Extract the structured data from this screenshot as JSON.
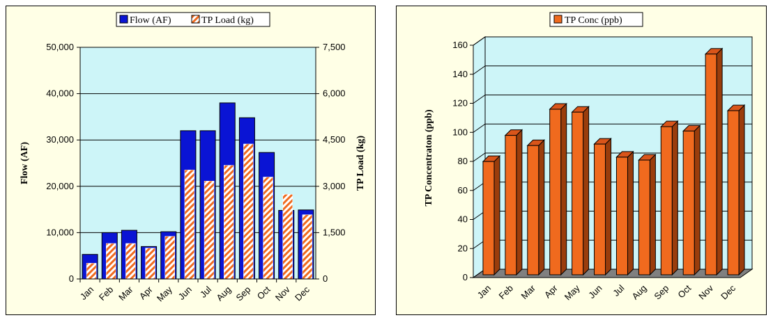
{
  "chart_data": [
    {
      "type": "bar",
      "categories": [
        "Jan",
        "Feb",
        "Mar",
        "Apr",
        "May",
        "Jun",
        "Jul",
        "Aug",
        "Sep",
        "Oct",
        "Nov",
        "Dec"
      ],
      "series": [
        {
          "name": "Flow (AF)",
          "axis": "left",
          "color": "#0a14d4",
          "values": [
            5300,
            10000,
            10500,
            7000,
            10200,
            32000,
            32000,
            38000,
            34800,
            27300,
            14800,
            14900
          ]
        },
        {
          "name": "TP Load (kg)",
          "axis": "right",
          "color": "#f06a1e",
          "values": [
            510,
            1150,
            1150,
            1000,
            1380,
            3530,
            3170,
            3680,
            4370,
            3300,
            2740,
            2080
          ]
        }
      ],
      "ylabel": "Flow (AF)",
      "y2label": "TP Load (kg)",
      "ylim": [
        0,
        50000
      ],
      "y2lim": [
        0,
        7500
      ],
      "yticks": [
        "0",
        "10,000",
        "20,000",
        "30,000",
        "40,000",
        "50,000"
      ],
      "y2ticks": [
        "0",
        "1,500",
        "3,000",
        "4,500",
        "6,000",
        "7,500"
      ],
      "legend": "top-center",
      "plot_bg": "#cdf5f8",
      "grid": true
    },
    {
      "type": "bar",
      "style": "3d",
      "categories": [
        "Jan",
        "Feb",
        "Mar",
        "Apr",
        "May",
        "Jun",
        "Jul",
        "Aug",
        "Sep",
        "Oct",
        "Nov",
        "Dec"
      ],
      "series": [
        {
          "name": "TP Conc (ppb)",
          "color": "#f06a1e",
          "values": [
            78,
            96,
            89,
            114,
            112,
            90,
            81,
            79,
            102,
            99,
            152,
            113
          ]
        }
      ],
      "ylabel": "TP Concentraton (ppb)",
      "ylim": [
        0,
        160
      ],
      "yticks": [
        "0",
        "20",
        "40",
        "60",
        "80",
        "100",
        "120",
        "140",
        "160"
      ],
      "legend": "top-center",
      "plot_bg": "#cdf5f8",
      "grid": true
    }
  ]
}
